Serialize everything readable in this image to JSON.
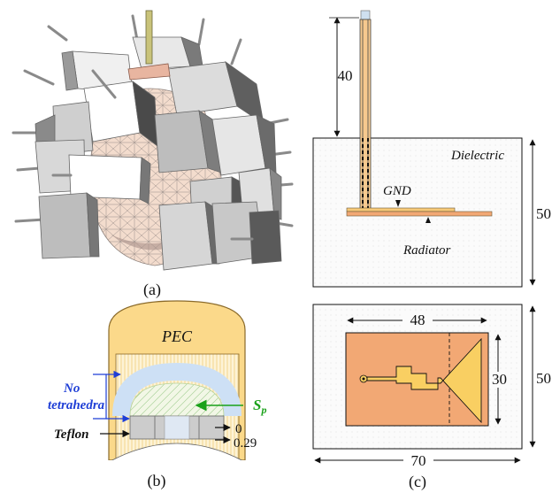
{
  "captions": {
    "a": "(a)",
    "b": "(b)",
    "c": "(c)"
  },
  "panel_b": {
    "pec": "PEC",
    "no_tetrahedra_line1": "No",
    "no_tetrahedra_line2": "tetrahedra",
    "sp": "S",
    "sp_sub": "p",
    "teflon": "Teflon",
    "dim_0": "0",
    "dim_029": "0.29",
    "colors": {
      "pec": "#fbd98a",
      "teflon": "#c9c9c9",
      "blue_arrow": "#1f3fd6",
      "green_arrow": "#1aa11a"
    }
  },
  "panel_c_top": {
    "dim_40": "40",
    "dim_50": "50",
    "dielectric": "Dielectric",
    "gnd": "GND",
    "radiator": "Radiator"
  },
  "panel_c_bottom": {
    "dim_48": "48",
    "dim_30": "30",
    "dim_50": "50",
    "dim_70": "70",
    "colors": {
      "substrate": "#f2a874",
      "radiator": "#f9cf62"
    }
  }
}
